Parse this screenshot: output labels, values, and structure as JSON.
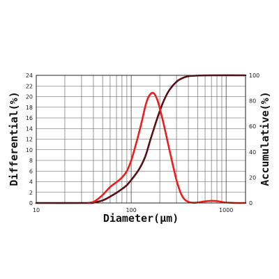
{
  "chart_data": {
    "type": "line",
    "xlabel": "Diameter(µm)",
    "ylabel_left": "Differential(%)",
    "ylabel_right": "Accumulative(%)",
    "x_scale": "log",
    "xlim": [
      10,
      1600
    ],
    "x_ticks": [
      10,
      100,
      1000
    ],
    "x_tick_labels": [
      "10",
      "100",
      "1000"
    ],
    "ylim_left": [
      0,
      24
    ],
    "y_ticks_left": [
      0,
      2,
      4,
      6,
      8,
      10,
      12,
      14,
      16,
      18,
      20,
      22,
      24
    ],
    "ylim_right": [
      0,
      100
    ],
    "y_ticks_right": [
      0,
      20,
      40,
      60,
      80,
      100
    ],
    "grid": true,
    "colors": {
      "differential": "#ee1c1c",
      "accumulative": "#5a0f14",
      "grid": "#555555"
    },
    "series": [
      {
        "axis": "left",
        "color": "#ee1c1c",
        "points": [
          [
            35,
            0
          ],
          [
            40,
            0.2
          ],
          [
            45,
            0.8
          ],
          [
            50,
            1.5
          ],
          [
            55,
            2.3
          ],
          [
            60,
            3.0
          ],
          [
            65,
            3.5
          ],
          [
            70,
            3.9
          ],
          [
            80,
            4.8
          ],
          [
            90,
            6.0
          ],
          [
            100,
            8.0
          ],
          [
            110,
            10.5
          ],
          [
            120,
            13.0
          ],
          [
            130,
            15.5
          ],
          [
            140,
            18.0
          ],
          [
            150,
            19.7
          ],
          [
            160,
            20.5
          ],
          [
            170,
            20.7
          ],
          [
            180,
            20.2
          ],
          [
            190,
            19.2
          ],
          [
            200,
            17.8
          ],
          [
            220,
            14.8
          ],
          [
            240,
            11.8
          ],
          [
            260,
            9.0
          ],
          [
            280,
            6.5
          ],
          [
            300,
            4.3
          ],
          [
            330,
            2.0
          ],
          [
            360,
            0.8
          ],
          [
            400,
            0.2
          ],
          [
            450,
            0.05
          ],
          [
            500,
            0.1
          ],
          [
            600,
            0.3
          ],
          [
            700,
            0.4
          ],
          [
            800,
            0.35
          ],
          [
            900,
            0.2
          ],
          [
            1000,
            0.1
          ],
          [
            1100,
            0.05
          ],
          [
            1300,
            0
          ],
          [
            1600,
            0
          ]
        ]
      },
      {
        "axis": "right",
        "color": "#5a0f14",
        "points": [
          [
            10,
            0
          ],
          [
            35,
            0
          ],
          [
            40,
            0.3
          ],
          [
            50,
            2
          ],
          [
            60,
            5
          ],
          [
            70,
            8
          ],
          [
            80,
            11
          ],
          [
            90,
            14
          ],
          [
            100,
            18
          ],
          [
            120,
            26
          ],
          [
            140,
            36
          ],
          [
            160,
            50
          ],
          [
            180,
            62
          ],
          [
            200,
            72
          ],
          [
            220,
            80
          ],
          [
            250,
            88
          ],
          [
            300,
            95
          ],
          [
            350,
            98
          ],
          [
            400,
            99.3
          ],
          [
            500,
            99.8
          ],
          [
            700,
            100
          ],
          [
            1600,
            100
          ]
        ]
      }
    ]
  }
}
